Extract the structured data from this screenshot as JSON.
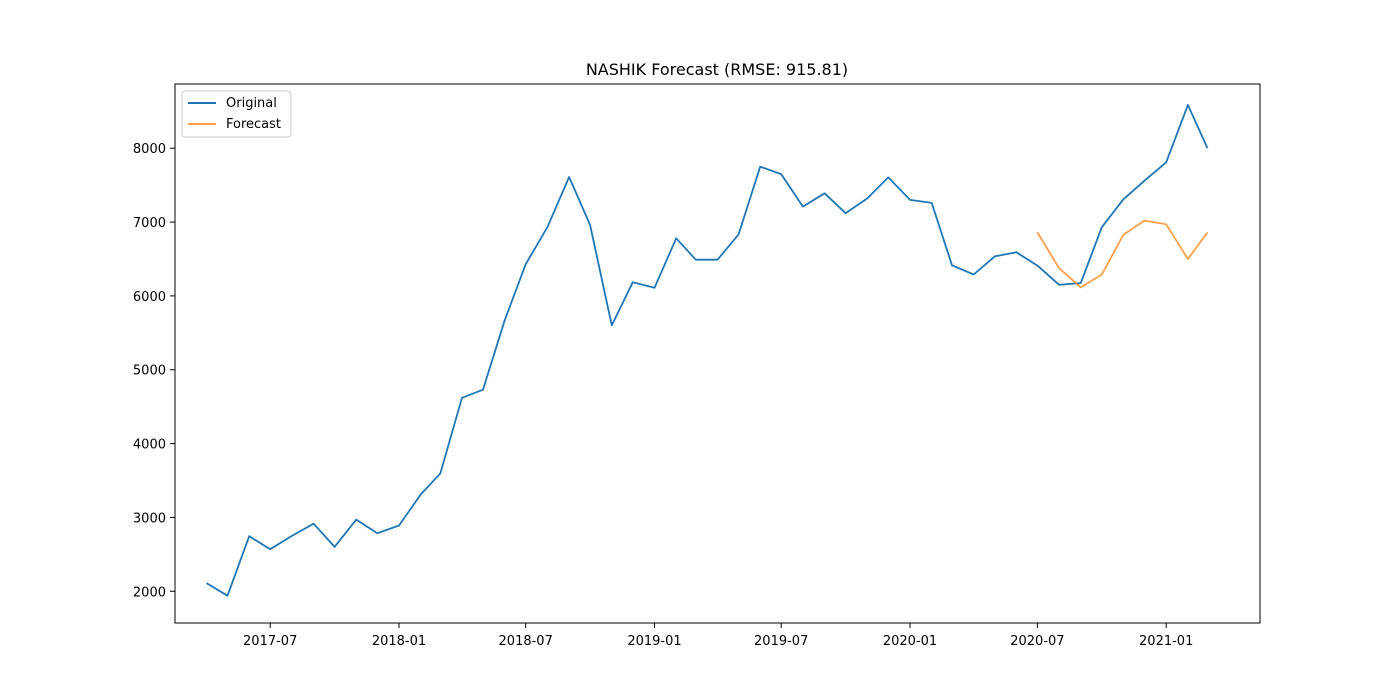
{
  "chart_data": {
    "type": "line",
    "title": "NASHIK Forecast (RMSE: 915.81)",
    "xlabel": "",
    "ylabel": "",
    "x_ticks": [
      "2017-07",
      "2018-01",
      "2018-07",
      "2019-01",
      "2019-07",
      "2020-01",
      "2020-07",
      "2021-01"
    ],
    "y_ticks": [
      2000,
      3000,
      4000,
      5000,
      6000,
      7000,
      8000
    ],
    "xlim": [
      "2017-02-15",
      "2021-05-15"
    ],
    "ylim": [
      1570,
      8870
    ],
    "grid": false,
    "legend_position": "top-left",
    "series": [
      {
        "name": "Original",
        "color": "#1f77b4",
        "x": [
          "2017-04",
          "2017-05",
          "2017-06",
          "2017-07",
          "2017-08",
          "2017-09",
          "2017-10",
          "2017-11",
          "2017-12",
          "2018-01",
          "2018-02",
          "2018-03",
          "2018-04",
          "2018-05",
          "2018-06",
          "2018-07",
          "2018-08",
          "2018-09",
          "2018-10",
          "2018-11",
          "2018-12",
          "2019-01",
          "2019-02",
          "2019-03",
          "2019-04",
          "2019-05",
          "2019-06",
          "2019-07",
          "2019-08",
          "2019-09",
          "2019-10",
          "2019-11",
          "2019-12",
          "2020-01",
          "2020-02",
          "2020-03",
          "2020-04",
          "2020-05",
          "2020-06",
          "2020-07",
          "2020-08",
          "2020-09",
          "2020-10",
          "2020-11",
          "2020-12",
          "2021-01",
          "2021-02",
          "2021-03"
        ],
        "values": [
          2110,
          1940,
          2745,
          2570,
          2750,
          2915,
          2600,
          2970,
          2785,
          2890,
          3310,
          3595,
          4620,
          4730,
          5670,
          6430,
          6930,
          7610,
          6960,
          5600,
          6185,
          6110,
          6780,
          6490,
          6490,
          6830,
          7750,
          7650,
          7210,
          7390,
          7120,
          7320,
          7605,
          7300,
          7260,
          6415,
          6290,
          6535,
          6590,
          6410,
          6150,
          6175,
          6930,
          7310,
          7560,
          7810,
          8585,
          8000
        ]
      },
      {
        "name": "Forecast",
        "color": "#ff7f0e",
        "x": [
          "2020-07",
          "2020-08",
          "2020-09",
          "2020-10",
          "2020-11",
          "2020-12",
          "2021-01",
          "2021-02",
          "2021-03"
        ],
        "values": [
          6860,
          6375,
          6115,
          6290,
          6830,
          7020,
          6970,
          6500,
          6860
        ]
      }
    ]
  }
}
